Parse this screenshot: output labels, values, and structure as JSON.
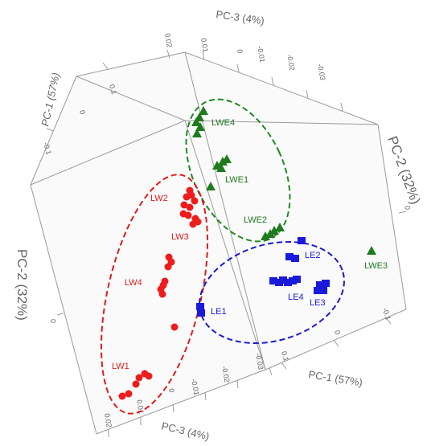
{
  "chart_data": {
    "type": "scatter",
    "subtype": "3d-pca",
    "axes": {
      "pc1": "PC-1 (57%)",
      "pc2": "PC-2 (32%)",
      "pc3": "PC-3 (4%)"
    },
    "ticks": {
      "pc3_top": [
        "0.02",
        "0.01",
        "0",
        "-0.01",
        "-0.02",
        "-0.03"
      ],
      "pc1_top": [
        "0.1",
        "0",
        "-0.1"
      ],
      "pc2_left": [
        "0"
      ],
      "pc3_bottom": [
        "0.02",
        "0.01",
        "0",
        "-0.01",
        "-0.02",
        "-0.03"
      ],
      "pc1_bottom": [
        "0.1",
        "0",
        "-0.1"
      ],
      "pc2_right": [
        "0"
      ]
    },
    "group_labels": {
      "LW1": "LW1",
      "LW2": "LW2",
      "LW3": "LW3",
      "LW4": "LW4",
      "LE1": "LE1",
      "LE2": "LE2",
      "LE3": "LE3",
      "LE4": "LE4",
      "LWE1": "LWE1",
      "LWE2": "LWE2",
      "LWE3": "LWE3",
      "LWE4": "LWE4"
    },
    "colors": {
      "LW": "#ee1c1c",
      "LE": "#1a1adc",
      "LWE": "#1f7a1f",
      "axis": "#8c8c8c",
      "axis_text": "#666666"
    },
    "series": [
      {
        "group": "LW",
        "marker": "circle",
        "points": [
          [
            236,
            237
          ],
          [
            232,
            245
          ],
          [
            238,
            243
          ],
          [
            242,
            250
          ],
          [
            229,
            255
          ],
          [
            236,
            258
          ],
          [
            228,
            266
          ],
          [
            234,
            268
          ],
          [
            243,
            272
          ],
          [
            246,
            276
          ],
          [
            240,
            279
          ],
          [
            210,
            320
          ],
          [
            213,
            326
          ],
          [
            209,
            332
          ],
          [
            205,
            350
          ],
          [
            203,
            355
          ],
          [
            200,
            360
          ],
          [
            202,
            366
          ],
          [
            217,
            407
          ],
          [
            180,
            465
          ],
          [
            185,
            468
          ],
          [
            173,
            470
          ],
          [
            169,
            478
          ],
          [
            160,
            490
          ],
          [
            152,
            493
          ]
        ]
      },
      {
        "group": "LE",
        "marker": "square",
        "points": [
          [
            375,
            300
          ],
          [
            360,
            320
          ],
          [
            367,
            322
          ],
          [
            340,
            350
          ],
          [
            347,
            352
          ],
          [
            352,
            349
          ],
          [
            358,
            352
          ],
          [
            364,
            350
          ],
          [
            369,
            348
          ],
          [
            398,
            355
          ],
          [
            405,
            353
          ],
          [
            395,
            362
          ],
          [
            402,
            362
          ],
          [
            249,
            382
          ],
          [
            250,
            390
          ]
        ]
      },
      {
        "group": "LWE",
        "marker": "triangle",
        "points": [
          [
            253,
            138
          ],
          [
            248,
            146
          ],
          [
            244,
            152
          ],
          [
            249,
            158
          ],
          [
            245,
            166
          ],
          [
            282,
            198
          ],
          [
            277,
            201
          ],
          [
            270,
            206
          ],
          [
            275,
            209
          ],
          [
            262,
            232
          ],
          [
            348,
            283
          ],
          [
            341,
            287
          ],
          [
            336,
            291
          ],
          [
            330,
            294
          ],
          [
            462,
            312
          ]
        ]
      }
    ]
  }
}
